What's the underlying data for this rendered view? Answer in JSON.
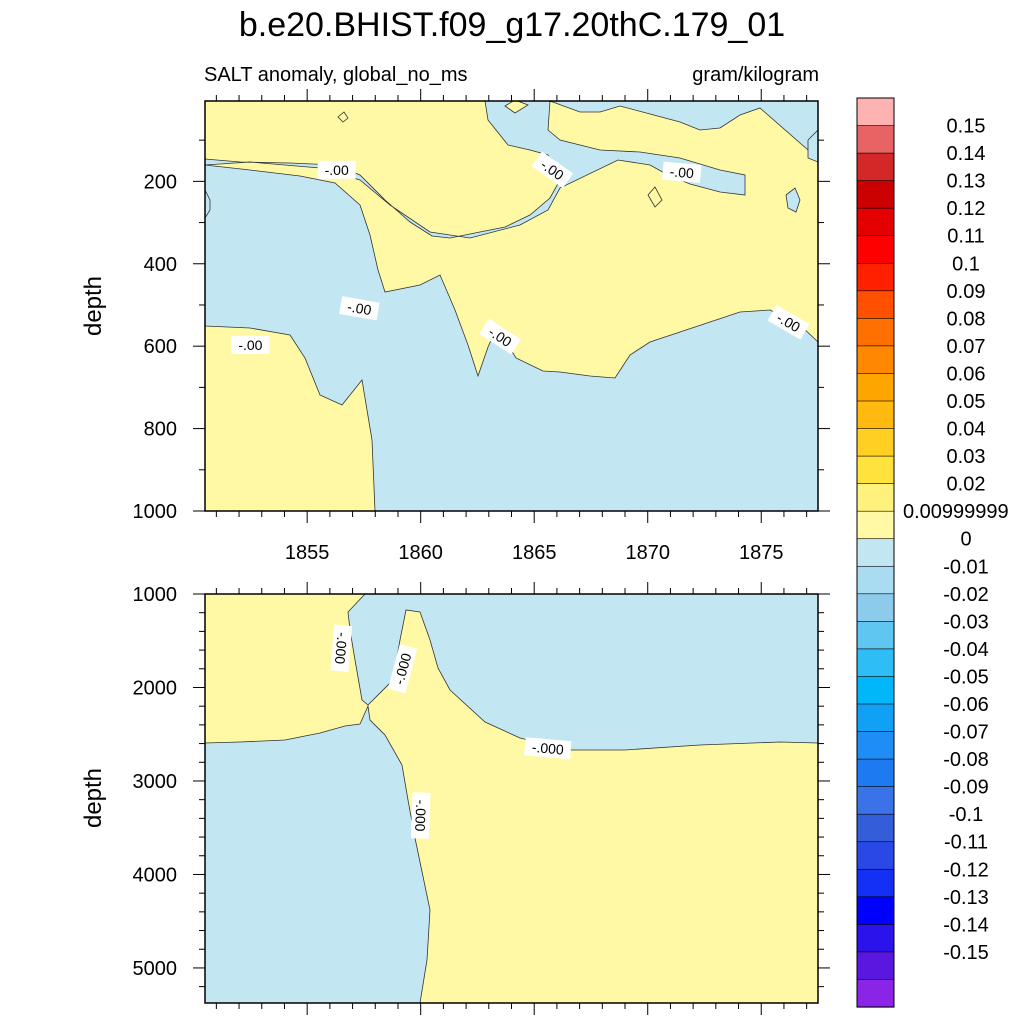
{
  "chart_data": [
    {
      "type": "heatmap",
      "title": "b.e20.BHIST.f09_g17.20thC.179_01",
      "subtitle_left": "SALT anomaly, global_no_ms",
      "subtitle_right": "gram/kilogram",
      "xlabel": "",
      "ylabel": "depth",
      "xlim": [
        1850.5,
        1877.5
      ],
      "ylim": [
        1000,
        5
      ],
      "x_tick_labels": [
        "1855",
        "1860",
        "1865",
        "1870",
        "1875"
      ],
      "x_tick_values": [
        1855,
        1860,
        1865,
        1870,
        1875
      ],
      "y_tick_labels": [
        "200",
        "400",
        "600",
        "800",
        "1000"
      ],
      "y_tick_values": [
        200,
        400,
        600,
        800,
        1000
      ],
      "contour_labels": [
        {
          "text": "-.00",
          "x": 1856.3,
          "y": 172,
          "rotation": 0
        },
        {
          "text": "-.00",
          "x": 1865.8,
          "y": 172,
          "rotation": 35
        },
        {
          "text": "-.00",
          "x": 1871.5,
          "y": 178,
          "rotation": 5
        },
        {
          "text": "-.00",
          "x": 1857.3,
          "y": 508,
          "rotation": 10
        },
        {
          "text": "-.00",
          "x": 1863.5,
          "y": 577,
          "rotation": 33
        },
        {
          "text": "-.00",
          "x": 1876.2,
          "y": 542,
          "rotation": 30
        },
        {
          "text": "-.00",
          "x": 1852.5,
          "y": 597,
          "rotation": 0
        }
      ],
      "regions": [
        {
          "value": "0 to 0.01",
          "color": "#FFF9A6"
        },
        {
          "value": "-0.01 to 0",
          "color": "#C3E6F3"
        }
      ]
    },
    {
      "type": "heatmap",
      "xlabel": "",
      "ylabel": "depth",
      "xlim": [
        1850.5,
        1877.5
      ],
      "ylim": [
        5375,
        1000
      ],
      "y_tick_labels": [
        "1000",
        "2000",
        "3000",
        "4000",
        "5000"
      ],
      "y_tick_values": [
        1000,
        2000,
        3000,
        4000,
        5000
      ],
      "contour_labels": [
        {
          "text": "-.000",
          "x": 1856.5,
          "y": 1580,
          "rotation": 95
        },
        {
          "text": "-.000",
          "x": 1859.2,
          "y": 1800,
          "rotation": -75
        },
        {
          "text": "-.000",
          "x": 1865.6,
          "y": 2650,
          "rotation": 5
        },
        {
          "text": "-.000",
          "x": 1860,
          "y": 3370,
          "rotation": 92
        }
      ],
      "regions": [
        {
          "value": "0 to 0.01",
          "color": "#FFF9A6"
        },
        {
          "value": "-0.01 to 0",
          "color": "#C3E6F3"
        }
      ]
    }
  ],
  "colorbar": {
    "labels": [
      "0.15",
      "0.14",
      "0.13",
      "0.12",
      "0.11",
      "0.1",
      "0.09",
      "0.08",
      "0.07",
      "0.06",
      "0.05",
      "0.04",
      "0.03",
      "0.02",
      "0.00999999",
      "0",
      "-0.01",
      "-0.02",
      "-0.03",
      "-0.04",
      "-0.05",
      "-0.06",
      "-0.07",
      "-0.08",
      "-0.09",
      "-0.1",
      "-0.11",
      "-0.12",
      "-0.13",
      "-0.14",
      "-0.15"
    ],
    "colors": [
      "#FFB2B2",
      "#E86464",
      "#D42828",
      "#CB0000",
      "#E50000",
      "#FF0000",
      "#FF2000",
      "#FF5000",
      "#FF7000",
      "#FF8800",
      "#FFA500",
      "#FFB90F",
      "#FFCF21",
      "#FFE33C",
      "#FFF27C",
      "#FFF9A6",
      "#C3E6F3",
      "#A9DCF1",
      "#8CCBEC",
      "#5EC6F0",
      "#2EBEF5",
      "#00B7F9",
      "#10A0F5",
      "#1E8DF5",
      "#1E7AF0",
      "#3A73E8",
      "#345ED9",
      "#2A48E6",
      "#1430F5",
      "#0000FF",
      "#2B14EB",
      "#5A17E0",
      "#8A25E8"
    ]
  }
}
